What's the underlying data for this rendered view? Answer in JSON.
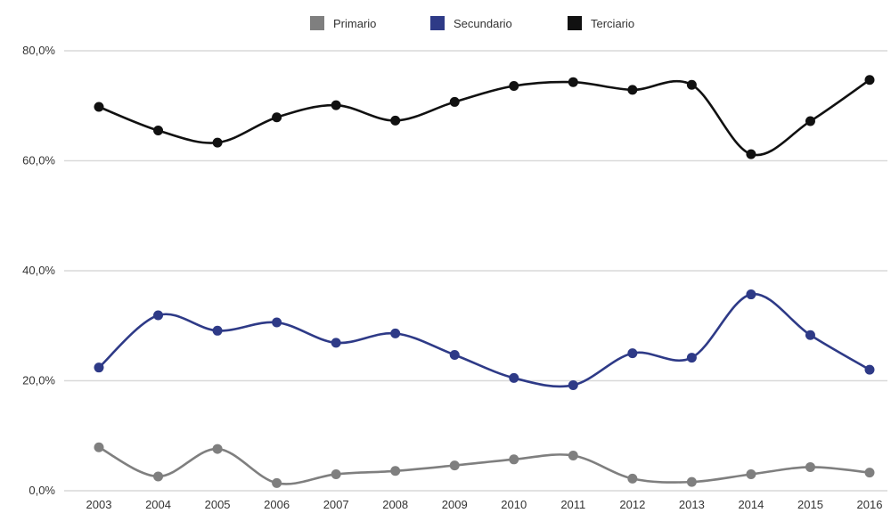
{
  "chart_data": {
    "type": "line",
    "title": "",
    "xlabel": "",
    "ylabel": "",
    "categories": [
      "2003",
      "2004",
      "2005",
      "2006",
      "2007",
      "2008",
      "2009",
      "2010",
      "2011",
      "2012",
      "2013",
      "2014",
      "2015",
      "2016"
    ],
    "ylim": [
      0,
      80
    ],
    "y_ticks": [
      0,
      20,
      40,
      60,
      80
    ],
    "y_tick_labels": [
      "0,0%",
      "20,0%",
      "40,0%",
      "60,0%",
      "80,0%"
    ],
    "grid": true,
    "legend_position": "top-center",
    "series": [
      {
        "name": "Primario",
        "color": "#7f7f7f",
        "values": [
          7.9,
          2.6,
          7.6,
          1.4,
          3.0,
          3.6,
          4.6,
          5.7,
          6.4,
          2.2,
          1.6,
          3.0,
          4.3,
          3.3
        ]
      },
      {
        "name": "Secundario",
        "color": "#2e3a87",
        "values": [
          22.4,
          31.9,
          29.1,
          30.6,
          26.9,
          28.6,
          24.7,
          20.5,
          19.2,
          25.0,
          24.2,
          35.7,
          28.3,
          22.0
        ]
      },
      {
        "name": "Terciario",
        "color": "#111111",
        "values": [
          69.8,
          65.5,
          63.3,
          67.9,
          70.1,
          67.3,
          70.7,
          73.6,
          74.3,
          72.9,
          73.8,
          61.2,
          67.2,
          74.7
        ]
      }
    ]
  }
}
